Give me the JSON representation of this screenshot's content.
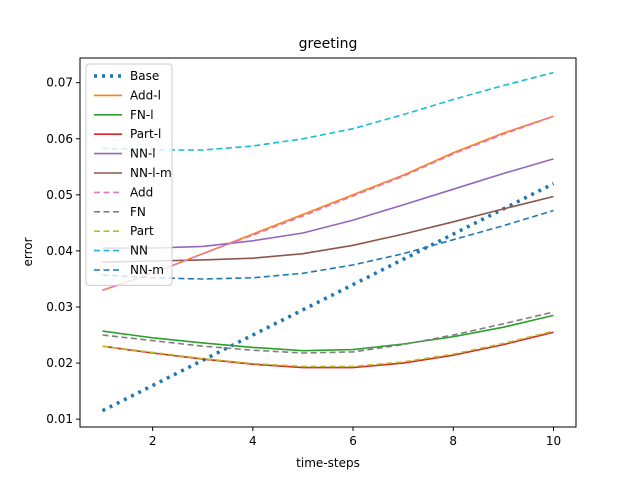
{
  "chart_data": {
    "type": "line",
    "title": "greeting",
    "xlabel": "time-steps",
    "ylabel": "error",
    "xlim": [
      0.55,
      10.45
    ],
    "ylim": [
      0.0086,
      0.0744
    ],
    "xticks": [
      2,
      4,
      6,
      8,
      10
    ],
    "yticks": [
      0.01,
      0.02,
      0.03,
      0.04,
      0.05,
      0.06,
      0.07
    ],
    "ytick_labels": [
      "0.01",
      "0.02",
      "0.03",
      "0.04",
      "0.05",
      "0.06",
      "0.07"
    ],
    "grid": false,
    "legend": "upper-left",
    "x": [
      1,
      2,
      3,
      4,
      5,
      6,
      7,
      8,
      9,
      10
    ],
    "series": [
      {
        "name": "Base",
        "color": "#1f77b4",
        "style": "dotted",
        "values": [
          0.0115,
          0.016,
          0.0205,
          0.025,
          0.0295,
          0.034,
          0.0385,
          0.043,
          0.0475,
          0.052
        ]
      },
      {
        "name": "Add-l",
        "color": "#ff7f0e",
        "style": "solid",
        "values": [
          0.033,
          0.036,
          0.0395,
          0.043,
          0.0465,
          0.05,
          0.0535,
          0.0575,
          0.061,
          0.064
        ]
      },
      {
        "name": "FN-l",
        "color": "#2ca02c",
        "style": "solid",
        "values": [
          0.0257,
          0.0245,
          0.0236,
          0.0228,
          0.0222,
          0.0224,
          0.0234,
          0.0247,
          0.0264,
          0.0285
        ]
      },
      {
        "name": "Part-l",
        "color": "#d62728",
        "style": "solid",
        "values": [
          0.023,
          0.0218,
          0.0207,
          0.0198,
          0.0192,
          0.0192,
          0.02,
          0.0214,
          0.0233,
          0.0255
        ]
      },
      {
        "name": "NN-l",
        "color": "#9467bd",
        "style": "solid",
        "values": [
          0.0405,
          0.0405,
          0.0408,
          0.0418,
          0.0432,
          0.0455,
          0.0482,
          0.051,
          0.0538,
          0.0564
        ]
      },
      {
        "name": "NN-l-m",
        "color": "#8c564b",
        "style": "solid",
        "values": [
          0.038,
          0.0382,
          0.0384,
          0.0387,
          0.0395,
          0.041,
          0.043,
          0.0452,
          0.0475,
          0.0497
        ]
      },
      {
        "name": "Add",
        "color": "#e377c2",
        "style": "dashed",
        "values": [
          0.033,
          0.036,
          0.0395,
          0.0428,
          0.0462,
          0.0498,
          0.0533,
          0.0573,
          0.0608,
          0.064
        ]
      },
      {
        "name": "FN",
        "color": "#7f7f7f",
        "style": "dashed",
        "values": [
          0.025,
          0.024,
          0.023,
          0.0223,
          0.0218,
          0.022,
          0.0233,
          0.025,
          0.027,
          0.0291
        ]
      },
      {
        "name": "Part",
        "color": "#bcbd22",
        "style": "dashed",
        "values": [
          0.023,
          0.0219,
          0.0208,
          0.0199,
          0.0194,
          0.0194,
          0.0202,
          0.0216,
          0.0235,
          0.0257
        ]
      },
      {
        "name": "NN",
        "color": "#17becf",
        "style": "dashed",
        "values": [
          0.0583,
          0.058,
          0.058,
          0.0587,
          0.06,
          0.0618,
          0.0643,
          0.067,
          0.0695,
          0.0718
        ]
      },
      {
        "name": "NN-m",
        "color": "#1f77b4",
        "style": "dashed",
        "values": [
          0.0357,
          0.0352,
          0.035,
          0.0352,
          0.036,
          0.0375,
          0.0395,
          0.042,
          0.0445,
          0.0472
        ]
      }
    ]
  }
}
